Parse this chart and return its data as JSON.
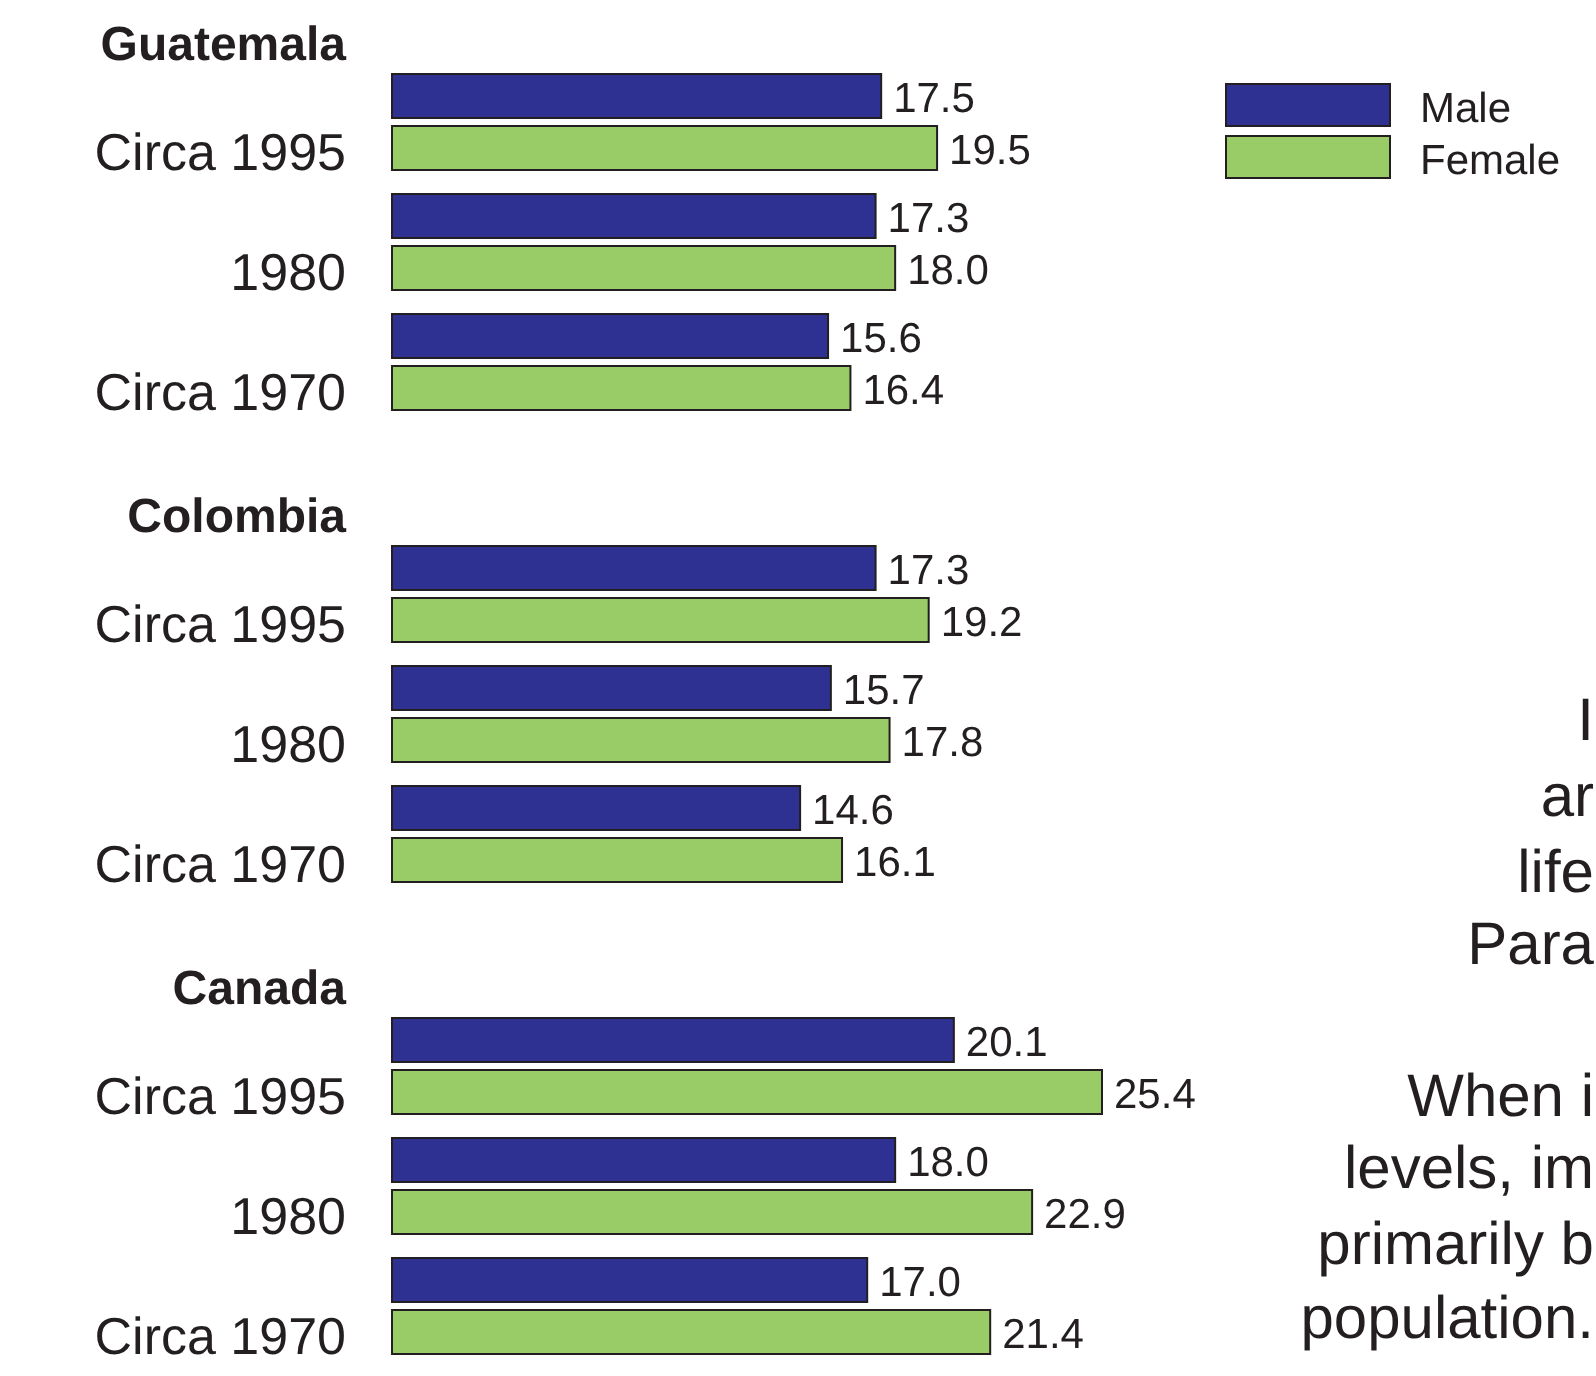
{
  "chart_data": [
    {
      "type": "bar",
      "orientation": "horizontal",
      "title": "Guatemala",
      "categories": [
        "Circa 1995",
        "1980",
        "Circa 1970"
      ],
      "legend": "top right",
      "series": [
        {
          "name": "Male",
          "color": "#2e3192",
          "values": [
            17.5,
            17.3,
            15.6
          ],
          "value_labels": [
            "17.5",
            "17.3",
            "15.6"
          ]
        },
        {
          "name": "Female",
          "color": "#99cc66",
          "values": [
            19.5,
            18.0,
            16.4
          ],
          "value_labels": [
            "19.5",
            "18.0",
            "16.4"
          ]
        }
      ]
    },
    {
      "type": "bar",
      "orientation": "horizontal",
      "title": "Colombia",
      "categories": [
        "Circa 1995",
        "1980",
        "Circa 1970"
      ],
      "series": [
        {
          "color": "#2e3192",
          "values": [
            17.3,
            15.7,
            14.6
          ],
          "value_labels": [
            "17.3",
            "15.7",
            "14.6"
          ]
        },
        {
          "color": "#99cc66",
          "values": [
            19.2,
            17.8,
            16.1
          ],
          "value_labels": [
            "19.2",
            "17.8",
            "16.1"
          ]
        }
      ],
      "annotations": [
        "I",
        "ar",
        "life",
        "Para"
      ]
    },
    {
      "type": "bar",
      "orientation": "horizontal",
      "title": "Canada",
      "categories": [
        "Circa 1995",
        "1980",
        "Circa 1970"
      ],
      "series": [
        {
          "color": "#2e3192",
          "values": [
            20.1,
            18.0,
            17.0
          ],
          "value_labels": [
            "20.1",
            "18.0",
            "17.0"
          ]
        },
        {
          "color": "#99cc66",
          "values": [
            25.4,
            22.9,
            21.4
          ],
          "value_labels": [
            "25.4",
            "22.9",
            "21.4"
          ]
        }
      ],
      "annotations": [
        "When i",
        "levels, im",
        "primarily b",
        "population."
      ]
    }
  ]
}
